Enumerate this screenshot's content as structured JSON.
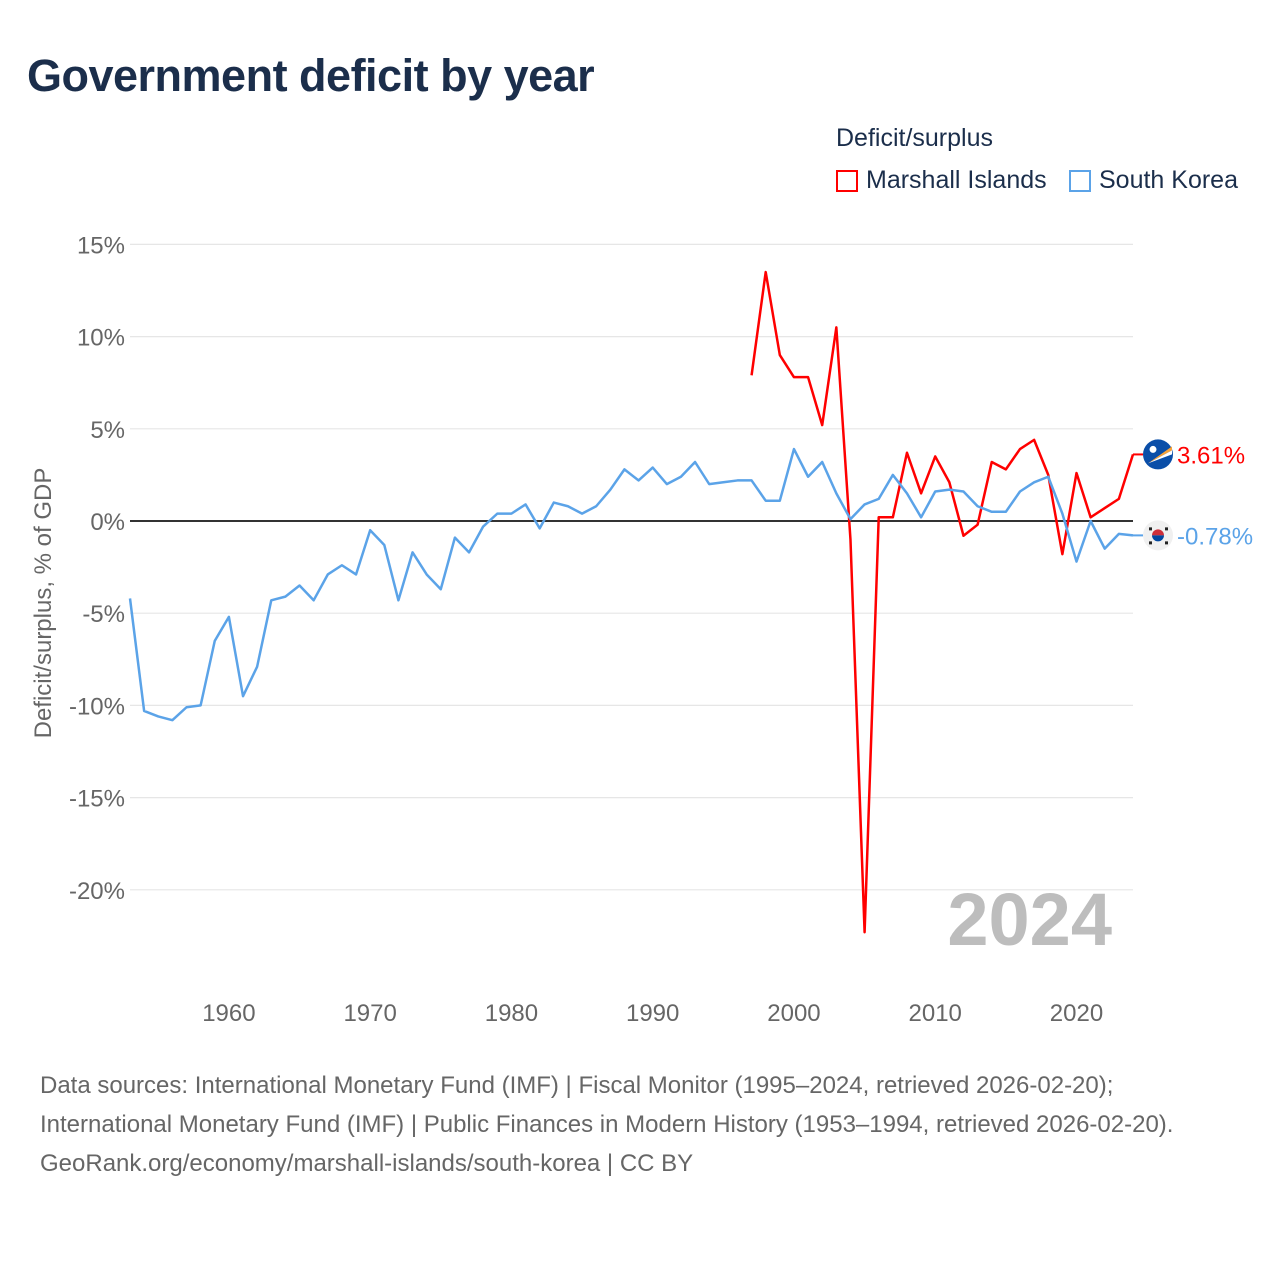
{
  "title": "Government deficit by year",
  "chart_data": {
    "type": "line",
    "title": "Government deficit by year",
    "ylabel": "Deficit/surplus, % of GDP",
    "xlabel": "",
    "ylim": [
      -25,
      15
    ],
    "xlim": [
      1953,
      2024
    ],
    "yticks": [
      15,
      10,
      5,
      0,
      -5,
      -10,
      -15,
      -20
    ],
    "ytick_labels": [
      "15%",
      "10%",
      "5%",
      "0%",
      "-5%",
      "-10%",
      "-15%",
      "-20%"
    ],
    "xticks": [
      1960,
      1970,
      1980,
      1990,
      2000,
      2010,
      2020
    ],
    "xtick_labels": [
      "1960",
      "1970",
      "1980",
      "1990",
      "2000",
      "2010",
      "2020"
    ],
    "grid": true,
    "legend_title": "Deficit/surplus",
    "legend_position": "top-right",
    "year_watermark": "2024",
    "series": [
      {
        "name": "Marshall Islands",
        "color": "#ff0000",
        "end_label": "3.61%",
        "flag_icon": "marshall-islands-flag",
        "start_year": 1997,
        "values": [
          7.9,
          13.5,
          9.0,
          7.8,
          7.8,
          5.2,
          10.5,
          -1.0,
          -22.3,
          0.2,
          0.2,
          3.7,
          1.5,
          3.5,
          2.1,
          -0.8,
          -0.2,
          3.2,
          2.8,
          3.9,
          4.4,
          2.5,
          -1.8,
          2.6,
          0.2,
          0.7,
          1.2,
          3.61
        ]
      },
      {
        "name": "South Korea",
        "color": "#5ba3e8",
        "end_label": "-0.78%",
        "flag_icon": "south-korea-flag",
        "start_year": 1953,
        "values": [
          -4.2,
          -10.3,
          -10.6,
          -10.8,
          -10.1,
          -10.0,
          -6.5,
          -5.2,
          -9.5,
          -7.9,
          -4.3,
          -4.1,
          -3.5,
          -4.3,
          -2.9,
          -2.4,
          -2.9,
          -0.5,
          -1.3,
          -4.3,
          -1.7,
          -2.9,
          -3.7,
          -0.9,
          -1.7,
          -0.3,
          0.4,
          0.4,
          0.9,
          -0.4,
          1.0,
          0.8,
          0.4,
          0.8,
          1.7,
          2.8,
          2.2,
          2.9,
          2.0,
          2.4,
          3.2,
          2.0,
          2.1,
          2.2,
          2.2,
          1.1,
          1.1,
          3.9,
          2.4,
          3.2,
          1.5,
          0.1,
          0.9,
          1.2,
          2.5,
          1.5,
          0.2,
          1.6,
          1.7,
          1.6,
          0.8,
          0.5,
          0.5,
          1.6,
          2.1,
          2.4,
          0.4,
          -2.2,
          0.0,
          -1.5,
          -0.7,
          -0.78
        ]
      }
    ]
  },
  "source": {
    "line1": "Data sources: International Monetary Fund (IMF) | Fiscal Monitor (1995–2024, retrieved 2026-02-20); International Monetary Fund (IMF) | Public Finances in Modern History (1953–1994, retrieved 2026-02-20).",
    "line2": "GeoRank.org/economy/marshall-islands/south-korea | CC BY"
  }
}
